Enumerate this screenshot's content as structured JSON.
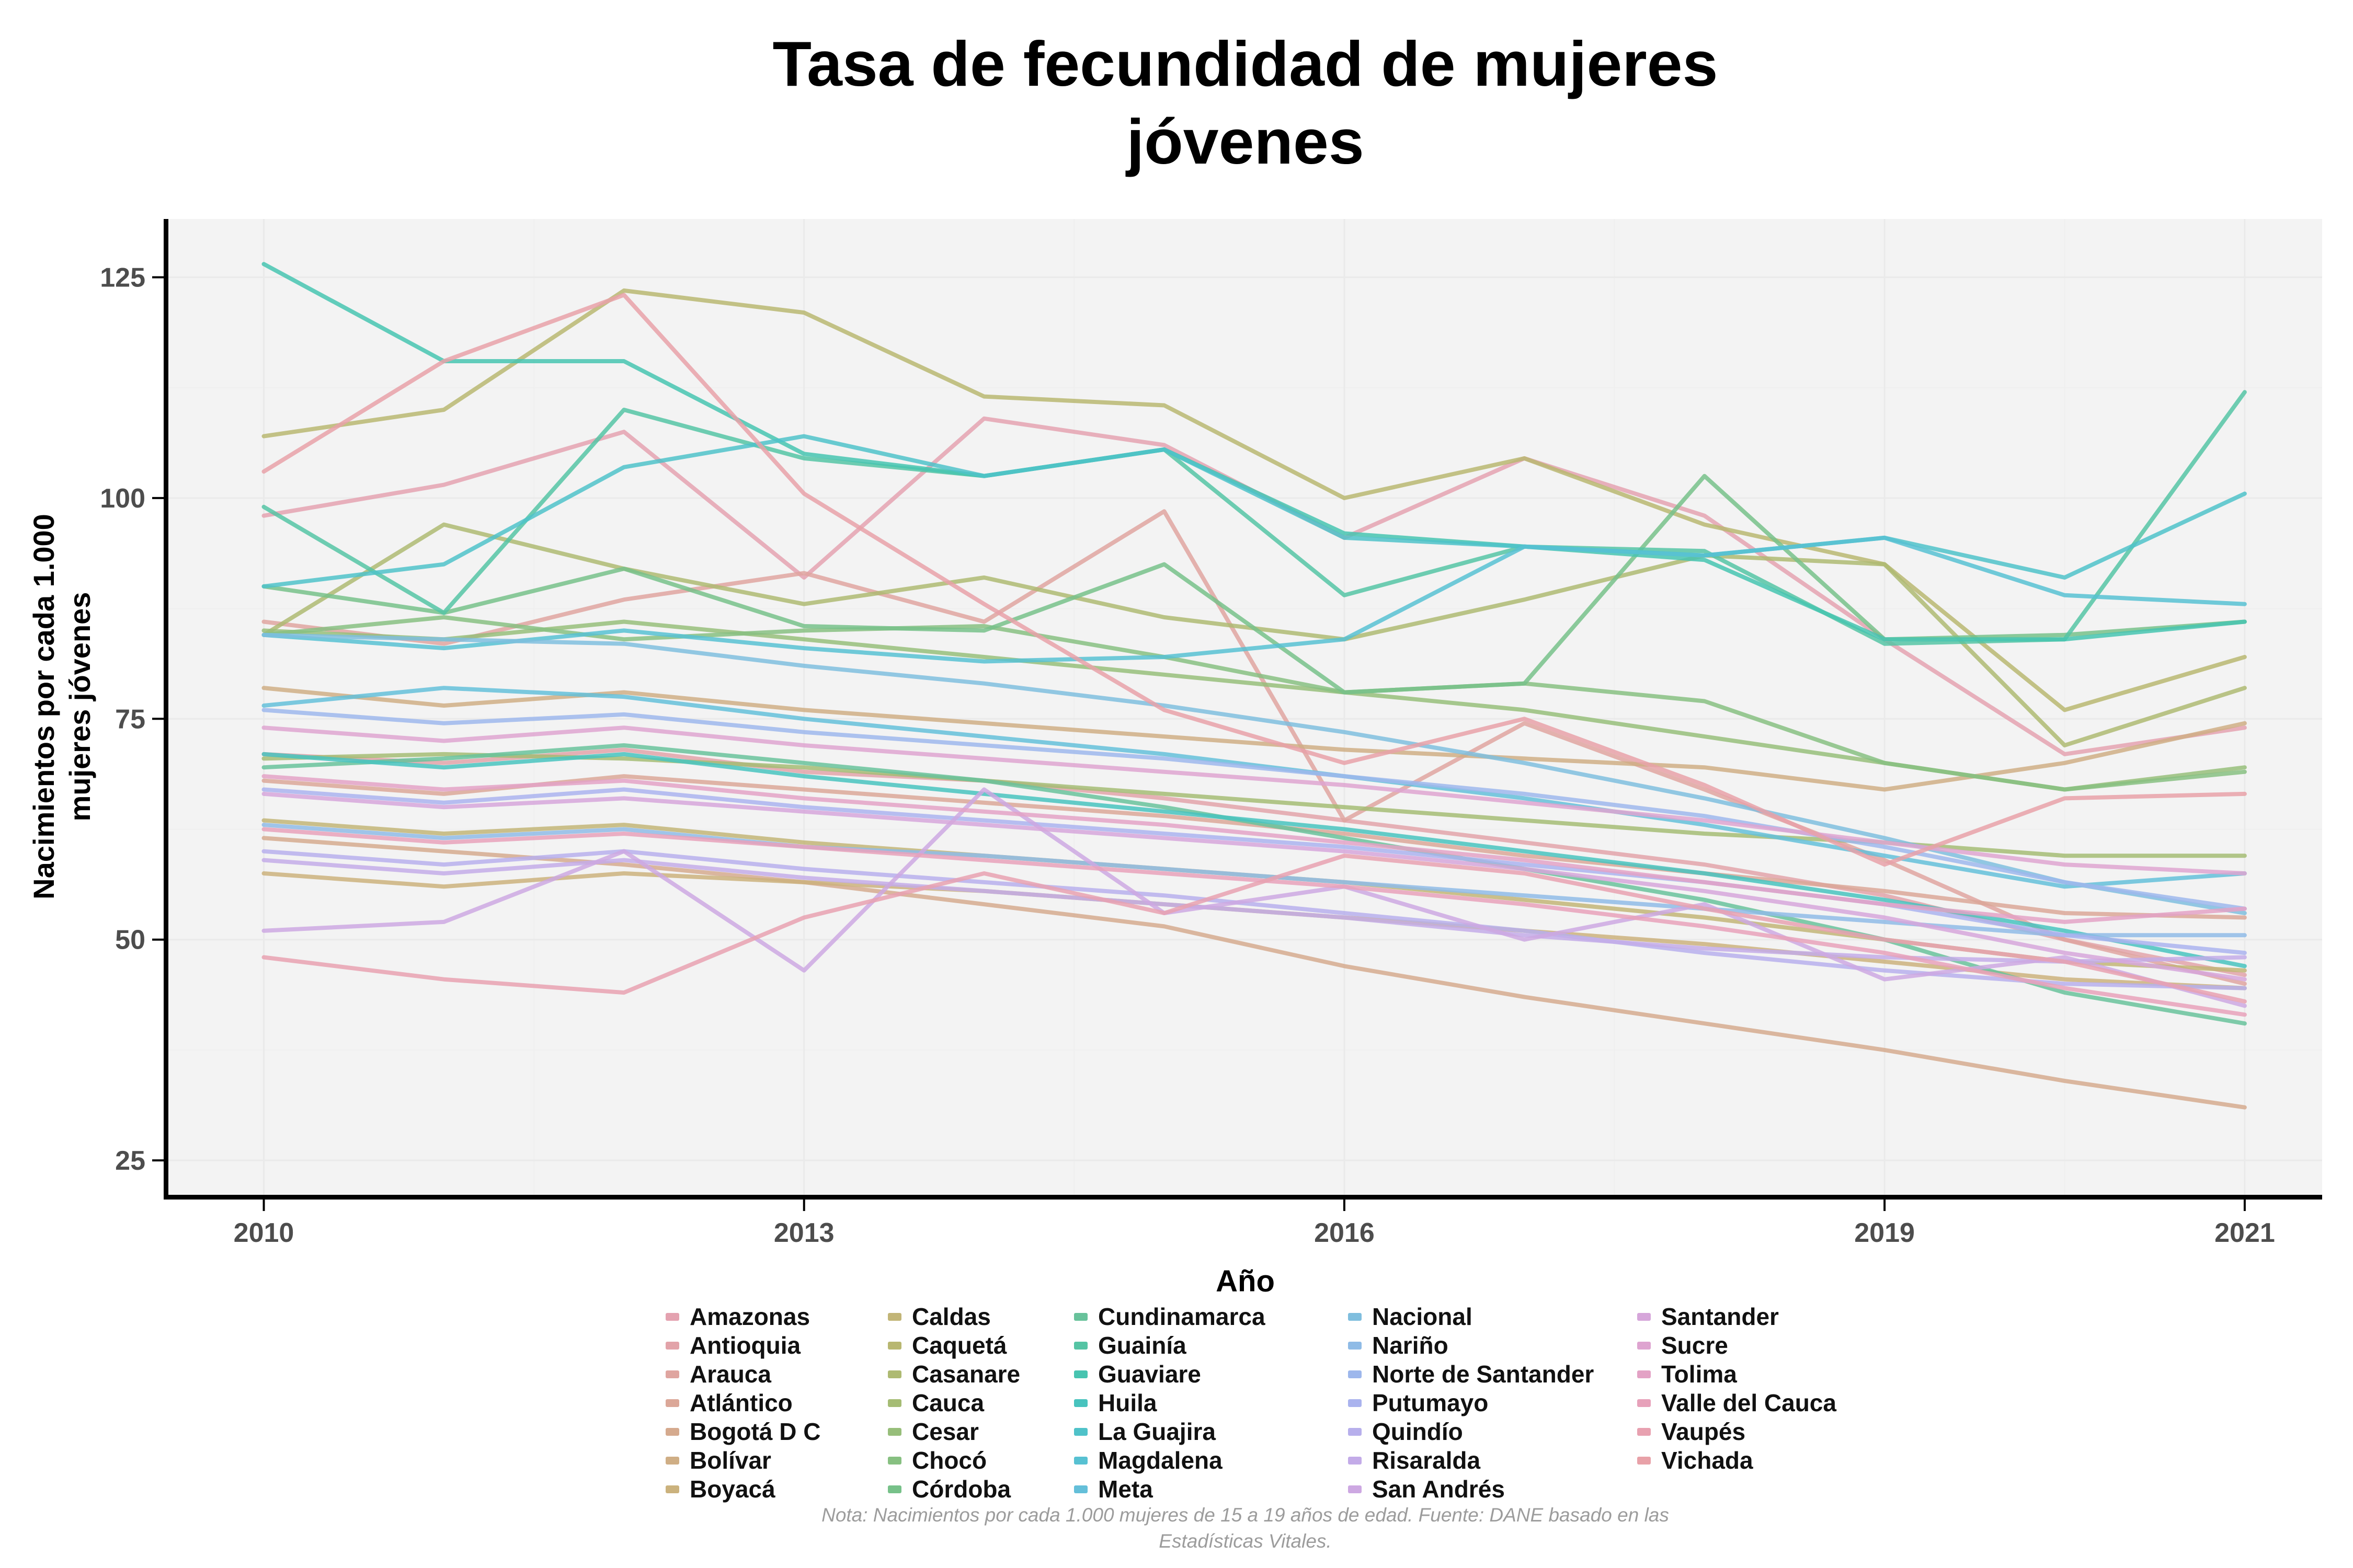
{
  "title": {
    "text": "Tasa de fecundidad de mujeres jóvenes",
    "lines": [
      "Tasa de fecundidad de mujeres",
      "jóvenes"
    ]
  },
  "x_axis": {
    "label": "Año",
    "ticks": [
      2010,
      2013,
      2016,
      2019,
      2021
    ]
  },
  "y_axis": {
    "label": "Nacimientos por cada 1.000 mujeres jóvenes",
    "label_lines": [
      "Nacimientos por cada 1.000",
      "mujeres jóvenes"
    ],
    "ticks": [
      125,
      100,
      75,
      50,
      25
    ]
  },
  "note": "Nota: Nacimientos por cada 1.000 mujeres de 15 a 19 años de edad. Fuente: DANE basado en las Estadísticas Vitales.",
  "colors": {
    "panel_bg": "#F3F3F3",
    "grid_major": "#EAEAEA",
    "grid_minor": "#EFEFEF",
    "axis_line": "#000000",
    "tick_text": "#4D4D4D",
    "title_text": "#000000",
    "note_text": "#9C9C9C"
  },
  "chart_data": {
    "type": "line",
    "title": "Tasa de fecundidad de mujeres jóvenes",
    "xlabel": "Año",
    "ylabel": "Nacimientos por cada 1.000 mujeres jóvenes",
    "grid": true,
    "legend_position": "bottom",
    "x": [
      2010,
      2011,
      2012,
      2013,
      2014,
      2015,
      2016,
      2017,
      2018,
      2019,
      2020,
      2021
    ],
    "xlim": [
      2009.47,
      2021.43
    ],
    "ylim": [
      21.1,
      131.6
    ],
    "series": [
      {
        "name": "Amazonas",
        "color": "#E4A2B0",
        "values": [
          98,
          101.5,
          107.5,
          91,
          109,
          106,
          95.5,
          104.5,
          98,
          84,
          71,
          74
        ]
      },
      {
        "name": "Antioquia",
        "color": "#E2A3A9",
        "values": [
          71,
          70,
          71.5,
          69,
          68,
          66,
          63.5,
          61,
          58.5,
          55,
          50,
          46
        ]
      },
      {
        "name": "Arauca",
        "color": "#DFA5A0",
        "values": [
          86,
          83.5,
          88.5,
          91.5,
          86,
          98.5,
          63.5,
          74.5,
          67,
          59,
          50,
          45
        ]
      },
      {
        "name": "Atlántico",
        "color": "#DBA798",
        "values": [
          68,
          66.5,
          68.5,
          67,
          65.5,
          64,
          62,
          59.5,
          57.5,
          55.5,
          53,
          52.5
        ]
      },
      {
        "name": "Bogotá D C",
        "color": "#D5AA8E",
        "values": [
          61.5,
          60,
          58.5,
          56.5,
          54,
          51.5,
          47,
          43.5,
          40.5,
          37.5,
          34,
          31
        ]
      },
      {
        "name": "Bolívar",
        "color": "#CFAE85",
        "values": [
          78.5,
          76.5,
          78,
          76,
          74.5,
          73,
          71.5,
          70.5,
          69.5,
          67,
          70,
          74.5
        ]
      },
      {
        "name": "Boyacá",
        "color": "#CBB27D",
        "values": [
          57.5,
          56,
          57.5,
          56.5,
          55.5,
          54,
          52.5,
          51,
          49.5,
          47.5,
          45.5,
          44.5
        ]
      },
      {
        "name": "Caldas",
        "color": "#C2B577",
        "values": [
          63.5,
          62,
          63,
          61,
          59.5,
          58,
          56.5,
          54.5,
          52.5,
          50,
          47.5,
          46.5
        ]
      },
      {
        "name": "Caquetá",
        "color": "#B8B771",
        "values": [
          107,
          110,
          123.5,
          121,
          111.5,
          110.5,
          100,
          104.5,
          97,
          92.5,
          76,
          82
        ]
      },
      {
        "name": "Casanare",
        "color": "#AEBA72",
        "values": [
          84.5,
          97,
          92,
          88,
          91,
          86.5,
          84,
          88.5,
          93.5,
          92.5,
          72,
          78.5
        ]
      },
      {
        "name": "Cauca",
        "color": "#A5BC74",
        "values": [
          70.5,
          71,
          70.5,
          69.5,
          68,
          66.5,
          65,
          63.5,
          62,
          61,
          59.5,
          59.5
        ]
      },
      {
        "name": "Cesar",
        "color": "#97BE7A",
        "values": [
          85,
          84,
          86,
          84,
          82,
          80,
          78,
          76,
          73,
          70,
          67,
          69.5
        ]
      },
      {
        "name": "Chocó",
        "color": "#87C081",
        "values": [
          84.5,
          86.5,
          84,
          85,
          85.5,
          82,
          78,
          79,
          77,
          70,
          67,
          69
        ]
      },
      {
        "name": "Córdoba",
        "color": "#77C189",
        "values": [
          90,
          87,
          92,
          85.5,
          85,
          92.5,
          78,
          79,
          102.5,
          84,
          84.5,
          86
        ]
      },
      {
        "name": "Cundinamarca",
        "color": "#68C29B",
        "values": [
          69.5,
          70.5,
          72,
          70,
          68,
          65,
          61.5,
          58,
          54.5,
          50,
          44,
          40.5
        ]
      },
      {
        "name": "Guainía",
        "color": "#55C4A4",
        "values": [
          99,
          87,
          110,
          104.5,
          102.5,
          105.5,
          89,
          94.5,
          94,
          83.5,
          84,
          112
        ]
      },
      {
        "name": "Guaviare",
        "color": "#47C4B0",
        "values": [
          126.5,
          115.5,
          115.5,
          105,
          102.5,
          105.5,
          96,
          94.5,
          93,
          84,
          84,
          86
        ]
      },
      {
        "name": "Huila",
        "color": "#48C3BE",
        "values": [
          71,
          69.5,
          71,
          68.5,
          66.5,
          64.5,
          62.5,
          60,
          57.5,
          54.5,
          51,
          47
        ]
      },
      {
        "name": "La Guajira",
        "color": "#4FC2C9",
        "values": [
          90,
          92.5,
          103.5,
          107,
          102.5,
          105.5,
          95.5,
          94.5,
          93.5,
          95.5,
          91,
          100.5
        ]
      },
      {
        "name": "Magdalena",
        "color": "#57C1D2",
        "values": [
          84.5,
          83,
          85,
          83,
          81.5,
          82,
          84,
          94.5,
          93.5,
          95.5,
          89,
          88
        ]
      },
      {
        "name": "Meta",
        "color": "#64BFD9",
        "values": [
          76.5,
          78.5,
          77.5,
          75,
          73,
          71,
          68.5,
          66,
          63,
          59.5,
          56,
          57.5
        ]
      },
      {
        "name": "Nacional",
        "color": "#7FBEDE",
        "values": [
          84.5,
          84,
          83.5,
          81,
          79,
          76.5,
          73.5,
          70,
          66,
          61.5,
          56.5,
          53
        ]
      },
      {
        "name": "Nariño",
        "color": "#8FBBE6",
        "values": [
          63,
          61.5,
          62.5,
          60.5,
          59.5,
          58,
          56.5,
          55,
          53.5,
          52,
          50.5,
          50.5
        ]
      },
      {
        "name": "Norte de Santander",
        "color": "#9DB7EC",
        "values": [
          76,
          74.5,
          75.5,
          73.5,
          72,
          70.5,
          68.5,
          66.5,
          64,
          60.5,
          56.5,
          53.5
        ]
      },
      {
        "name": "Putumayo",
        "color": "#AAB3EE",
        "values": [
          67,
          65.5,
          67,
          65,
          63.5,
          62,
          60.5,
          58.5,
          56.5,
          54,
          50.5,
          48.5
        ]
      },
      {
        "name": "Quindío",
        "color": "#B7AFEC",
        "values": [
          60,
          58.5,
          60,
          58,
          56.5,
          55,
          53,
          51,
          48.5,
          46.5,
          45,
          44.5
        ]
      },
      {
        "name": "Risaralda",
        "color": "#C3ABE8",
        "values": [
          59,
          57.5,
          59,
          57,
          55.5,
          54,
          52.5,
          50.5,
          49,
          48,
          47.5,
          48
        ]
      },
      {
        "name": "San Andrés",
        "color": "#CDA8E2",
        "values": [
          51,
          52,
          60,
          46.5,
          67,
          53,
          56,
          50,
          54,
          45.5,
          48,
          42.5
        ]
      },
      {
        "name": "Santander",
        "color": "#D6A6DA",
        "values": [
          66.5,
          65,
          66,
          64.5,
          63,
          61.5,
          60,
          58,
          55.5,
          52.5,
          48.5,
          45.5
        ]
      },
      {
        "name": "Sucre",
        "color": "#DEA4D0",
        "values": [
          74,
          72.5,
          74,
          72,
          70.5,
          69,
          67.5,
          65.5,
          63.5,
          61,
          58.5,
          57.5
        ]
      },
      {
        "name": "Tolima",
        "color": "#E3A2C5",
        "values": [
          68.5,
          67,
          68,
          66,
          64.5,
          63,
          61,
          59,
          56.5,
          54,
          52,
          53.5
        ]
      },
      {
        "name": "Valle del Cauca",
        "color": "#E7A1BA",
        "values": [
          62.5,
          61,
          62,
          60.5,
          59,
          57.5,
          56,
          54,
          51.5,
          48.5,
          44.5,
          41.5
        ]
      },
      {
        "name": "Vaupés",
        "color": "#E8A1B0",
        "values": [
          48,
          45.5,
          44,
          52.5,
          57.5,
          53,
          59.5,
          57.5,
          53.5,
          50,
          47.5,
          43
        ]
      },
      {
        "name": "Vichada",
        "color": "#E8A1A8",
        "values": [
          103,
          115.5,
          123,
          100.5,
          88,
          76,
          70,
          75,
          67.5,
          58.5,
          66,
          66.5
        ]
      }
    ]
  },
  "legend": {
    "columns": [
      [
        "Amazonas",
        "Antioquia",
        "Arauca",
        "Atlántico",
        "Bogotá D C",
        "Bolívar",
        "Boyacá"
      ],
      [
        "Caldas",
        "Caquetá",
        "Casanare",
        "Cauca",
        "Cesar",
        "Chocó",
        "Córdoba"
      ],
      [
        "Cundinamarca",
        "Guainía",
        "Guaviare",
        "Huila",
        "La Guajira",
        "Magdalena",
        "Meta"
      ],
      [
        "Nacional",
        "Nariño",
        "Norte de Santander",
        "Putumayo",
        "Quindío",
        "Risaralda",
        "San Andrés"
      ],
      [
        "Santander",
        "Sucre",
        "Tolima",
        "Valle del Cauca",
        "Vaupés",
        "Vichada"
      ]
    ],
    "column_offsets": [
      0,
      425,
      781,
      1305,
      1858
    ]
  }
}
